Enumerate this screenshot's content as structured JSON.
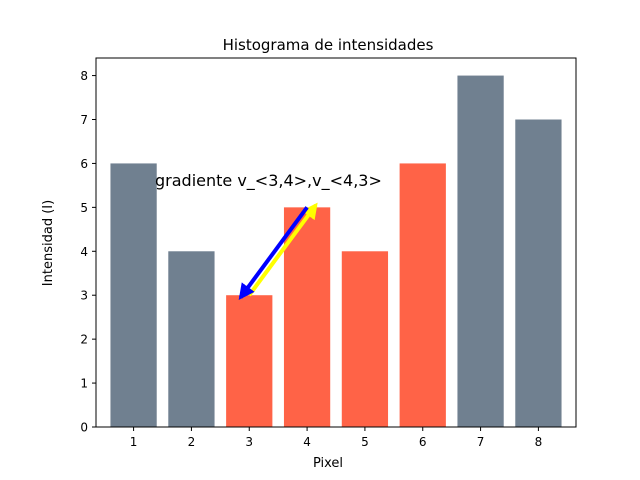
{
  "chart_data": {
    "type": "bar",
    "title": "Histograma de intensidades",
    "xlabel": "Pixel",
    "ylabel": "Intensidad (I)",
    "categories": [
      "1",
      "2",
      "3",
      "4",
      "5",
      "6",
      "7",
      "8"
    ],
    "x": [
      1,
      2,
      3,
      4,
      5,
      6,
      7,
      8
    ],
    "values": [
      6,
      4,
      3,
      5,
      4,
      6,
      8,
      7
    ],
    "bar_colors": [
      "#708090",
      "#708090",
      "#FF6347",
      "#FF6347",
      "#FF6347",
      "#FF6347",
      "#708090",
      "#708090"
    ],
    "ylim": [
      0,
      8.4
    ],
    "yticks": [
      0,
      1,
      2,
      3,
      4,
      5,
      6,
      7,
      8
    ],
    "xlim": [
      0.35,
      8.65
    ],
    "grid": false,
    "annotation": {
      "text": "gradiente v_<3,4>,v_<4,3>",
      "arrows": [
        {
          "from": [
            3,
            3
          ],
          "to": [
            4.15,
            5.05
          ],
          "color": "#FFFF00"
        },
        {
          "from": [
            4,
            5
          ],
          "to": [
            2.85,
            2.95
          ],
          "color": "#0000FF"
        }
      ]
    }
  }
}
